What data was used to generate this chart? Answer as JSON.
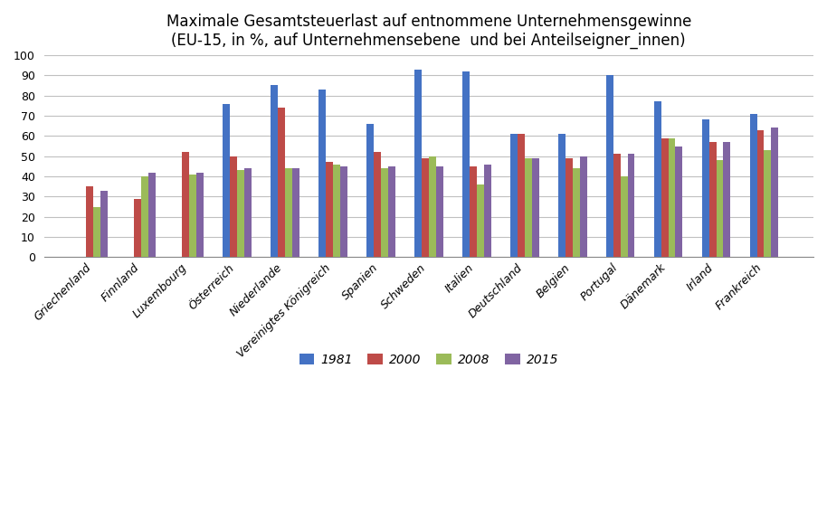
{
  "title_line1": "Maximale Gesamtsteuerlast auf entnommene Unternehmensgewinne",
  "title_line2": "(EU-15, in %, auf Unternehmensebene  und bei Anteilseigner_innen)",
  "categories": [
    "Griechenland",
    "Finnland",
    "Luxembourg",
    "Österreich",
    "Niederlande",
    "Vereinigtes Königreich",
    "Spanien",
    "Schweden",
    "Italien",
    "Deutschland",
    "Belgien",
    "Portugal",
    "Dänemark",
    "Irland",
    "Frankreich"
  ],
  "years": [
    "1981",
    "2000",
    "2008",
    "2015"
  ],
  "colors": [
    "#4472C4",
    "#BE4B48",
    "#9BBB59",
    "#8064A2"
  ],
  "values": {
    "1981": [
      0,
      0,
      0,
      76,
      85,
      83,
      66,
      93,
      92,
      61,
      61,
      90,
      77,
      68,
      71
    ],
    "2000": [
      35,
      29,
      52,
      50,
      74,
      47,
      52,
      49,
      45,
      61,
      49,
      51,
      59,
      57,
      63
    ],
    "2008": [
      25,
      40,
      41,
      43,
      44,
      46,
      44,
      50,
      36,
      49,
      44,
      40,
      59,
      48,
      53
    ],
    "2015": [
      33,
      42,
      42,
      44,
      44,
      45,
      45,
      45,
      46,
      49,
      50,
      51,
      55,
      57,
      64
    ]
  },
  "ylim": [
    0,
    100
  ],
  "yticks": [
    0,
    10,
    20,
    30,
    40,
    50,
    60,
    70,
    80,
    90,
    100
  ],
  "background_color": "#FFFFFF",
  "plot_bg_color": "#FFFFFF",
  "grid_color": "#C0C0C0",
  "bar_width": 0.15,
  "title_fontsize": 12,
  "tick_fontsize": 9,
  "legend_fontsize": 10
}
